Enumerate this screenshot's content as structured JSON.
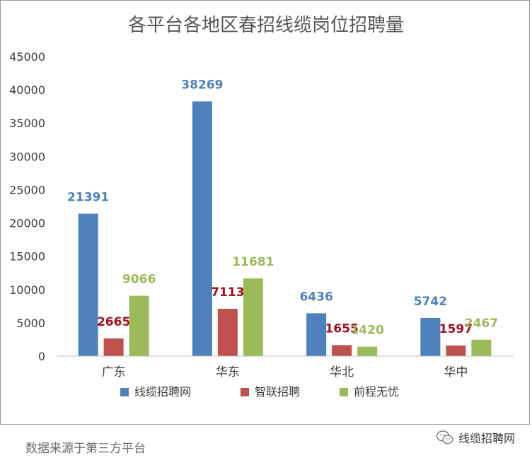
{
  "chart_data": {
    "type": "bar",
    "title": "各平台各地区春招线缆岗位招聘量",
    "categories": [
      "广东",
      "华东",
      "华北",
      "华中"
    ],
    "series": [
      {
        "name": "线缆招聘网",
        "values": [
          21391,
          38269,
          6436,
          5742
        ],
        "color": "#4f81bd",
        "label_color": "#4f81bd"
      },
      {
        "name": "智联招聘",
        "values": [
          2665,
          7113,
          1655,
          1597
        ],
        "color": "#c0504d",
        "label_color": "#a50f1e"
      },
      {
        "name": "前程无忧",
        "values": [
          9066,
          11681,
          1420,
          2467
        ],
        "color": "#9bbb59",
        "label_color": "#9bbb59"
      }
    ],
    "ylim": [
      0,
      45000
    ],
    "yticks": [
      0,
      5000,
      10000,
      15000,
      20000,
      25000,
      30000,
      35000,
      40000,
      45000
    ],
    "grid": false,
    "legend_position": "bottom"
  },
  "footer": {
    "source": "数据来源于第三方平台",
    "brand": "线缆招聘网",
    "brand_icon": "wechat-icon"
  }
}
